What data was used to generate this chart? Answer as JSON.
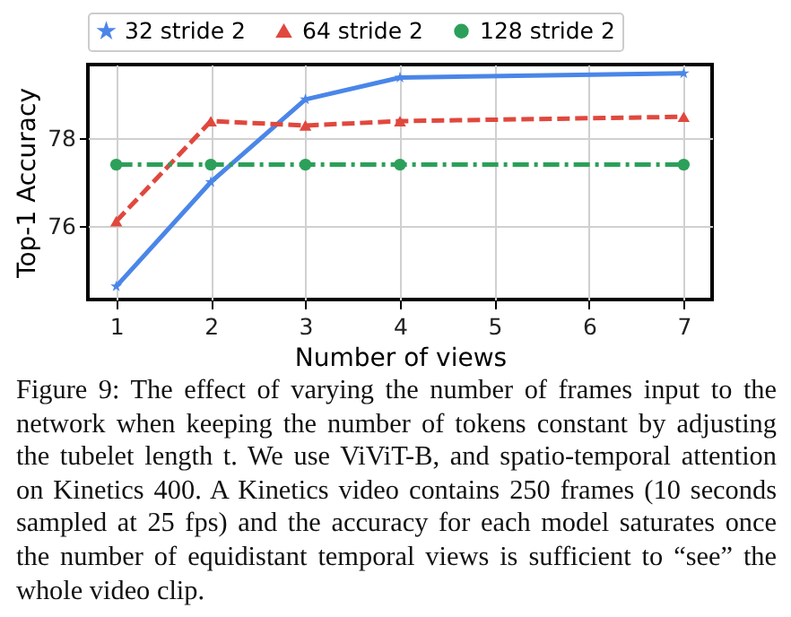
{
  "chart_data": {
    "type": "line",
    "xlabel": "Number of views",
    "ylabel": "Top-1 Accuracy",
    "x": [
      1,
      2,
      3,
      4,
      7
    ],
    "series": [
      {
        "name": "32 stride 2",
        "color": "#4a86e8",
        "marker": "star",
        "line_style": "solid",
        "values": [
          74.6,
          77.0,
          78.9,
          79.4,
          79.5
        ]
      },
      {
        "name": "64 stride 2",
        "color": "#e0483e",
        "marker": "triangle",
        "line_style": "dashed",
        "values": [
          76.1,
          78.4,
          78.3,
          78.4,
          78.5
        ]
      },
      {
        "name": "128 stride 2",
        "color": "#2ca05a",
        "marker": "circle",
        "line_style": "dashdot",
        "values": [
          77.4,
          77.4,
          77.4,
          77.4,
          77.4
        ]
      }
    ],
    "xlim": [
      0.7,
      7.3
    ],
    "xticks": [
      1,
      2,
      3,
      4,
      5,
      6,
      7
    ],
    "ylim": [
      74.3,
      79.7
    ],
    "yticks": [
      76,
      78
    ],
    "grid": true,
    "legend": "top",
    "annotations": [
      "Figure 9: The effect of varying the number of frames input to the network when keeping the number of tokens constant by adjusting the tubelet length t. We use ViViT-B, and spatio-temporal attention on Kinetics 400. A Kinetics video contains 250 frames (10 seconds sampled at 25 fps) and the accuracy for each model saturates once the number of equidistant temporal views is sufficient to “see” the whole video clip."
    ]
  }
}
